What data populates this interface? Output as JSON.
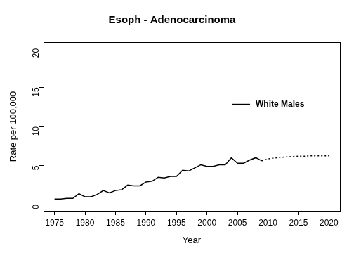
{
  "chart_data": {
    "type": "line",
    "title": "Esoph - Adenocarcinoma",
    "x_label": "Year",
    "y_label": "Rate per 100,000",
    "x": [
      1975,
      1976,
      1977,
      1978,
      1979,
      1980,
      1981,
      1982,
      1983,
      1984,
      1985,
      1986,
      1987,
      1988,
      1989,
      1990,
      1991,
      1992,
      1993,
      1994,
      1995,
      1996,
      1997,
      1998,
      1999,
      2000,
      2001,
      2002,
      2003,
      2004,
      2005,
      2006,
      2007,
      2008,
      2009,
      2010,
      2011,
      2012,
      2013,
      2014,
      2015,
      2016,
      2017,
      2018,
      2019,
      2020
    ],
    "series": [
      {
        "name": "White Males",
        "color": "#000000",
        "line_style": "solid",
        "values": [
          0.7,
          0.7,
          0.8,
          0.8,
          1.4,
          1.0,
          1.0,
          1.3,
          1.8,
          1.5,
          1.8,
          1.9,
          2.5,
          2.4,
          2.4,
          2.9,
          3.0,
          3.5,
          3.4,
          3.6,
          3.6,
          4.4,
          4.3,
          4.7,
          5.1,
          4.9,
          4.9,
          5.1,
          5.1,
          6.0,
          5.3,
          5.3,
          5.7,
          6.0,
          5.6,
          null,
          null,
          null,
          null,
          null,
          null,
          null,
          null,
          null,
          null,
          null
        ]
      },
      {
        "color": "#000000",
        "line_style": "dotted",
        "values": [
          null,
          null,
          null,
          null,
          null,
          null,
          null,
          null,
          null,
          null,
          null,
          null,
          null,
          null,
          null,
          null,
          null,
          null,
          null,
          null,
          null,
          null,
          null,
          null,
          null,
          null,
          null,
          null,
          null,
          null,
          null,
          null,
          null,
          null,
          5.6,
          5.85,
          5.95,
          6.05,
          6.1,
          6.15,
          6.2,
          6.2,
          6.25,
          6.25,
          6.25,
          6.25
        ]
      }
    ],
    "xlim": [
      1973.2,
      2021.8
    ],
    "xticks": [
      1975,
      1980,
      1985,
      1990,
      1995,
      2000,
      2005,
      2010,
      2015,
      2020
    ],
    "ylim": [
      -0.8,
      20.8
    ],
    "yticks": [
      0,
      5,
      10,
      15,
      20
    ],
    "grid": false,
    "legend": "right"
  }
}
